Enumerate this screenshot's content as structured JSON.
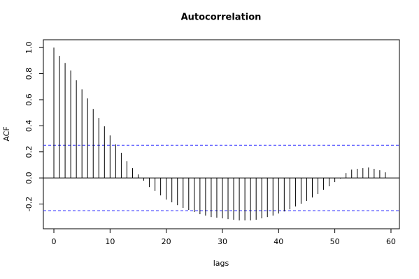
{
  "chart_data": {
    "type": "acf",
    "title": "Autocorrelation",
    "x_label": "lags",
    "y_label": "ACF",
    "x": [
      0,
      1,
      2,
      3,
      4,
      5,
      6,
      7,
      8,
      9,
      10,
      11,
      12,
      13,
      14,
      15,
      16,
      17,
      18,
      19,
      20,
      21,
      22,
      23,
      24,
      25,
      26,
      27,
      28,
      29,
      30,
      31,
      32,
      33,
      34,
      35,
      36,
      37,
      38,
      39,
      40,
      41,
      42,
      43,
      44,
      45,
      46,
      47,
      48,
      49,
      50,
      51,
      52,
      53,
      54,
      55,
      56,
      57,
      58,
      59
    ],
    "values": [
      1.0,
      0.936,
      0.882,
      0.824,
      0.749,
      0.679,
      0.61,
      0.529,
      0.46,
      0.396,
      0.326,
      0.257,
      0.193,
      0.128,
      0.075,
      0.027,
      -0.021,
      -0.07,
      -0.1,
      -0.134,
      -0.166,
      -0.187,
      -0.209,
      -0.23,
      -0.246,
      -0.262,
      -0.278,
      -0.289,
      -0.3,
      -0.305,
      -0.31,
      -0.316,
      -0.321,
      -0.326,
      -0.326,
      -0.326,
      -0.321,
      -0.31,
      -0.3,
      -0.289,
      -0.273,
      -0.257,
      -0.241,
      -0.219,
      -0.198,
      -0.176,
      -0.15,
      -0.123,
      -0.091,
      -0.064,
      -0.032,
      -0.005,
      0.037,
      0.064,
      0.07,
      0.075,
      0.08,
      0.07,
      0.059,
      0.043
    ],
    "color": "#000000",
    "ci_lines": [
      0.251,
      -0.251
    ],
    "ci_color": "#3333ff",
    "xlim": [
      -1.87,
      61.5
    ],
    "ylim": [
      -0.39,
      1.06
    ],
    "xticks": [
      0,
      10,
      20,
      30,
      40,
      50,
      60
    ],
    "yticks": [
      {
        "value": -0.2,
        "label": "-0.2"
      },
      {
        "value": 0,
        "label": "0.0"
      },
      {
        "value": 0.2,
        "label": "0.2"
      },
      {
        "value": 0.4,
        "label": "0.4"
      },
      {
        "value": 0.6,
        "label": "0.6"
      },
      {
        "value": 0.8,
        "label": "0.8"
      },
      {
        "value": 1,
        "label": "1.0"
      }
    ]
  }
}
